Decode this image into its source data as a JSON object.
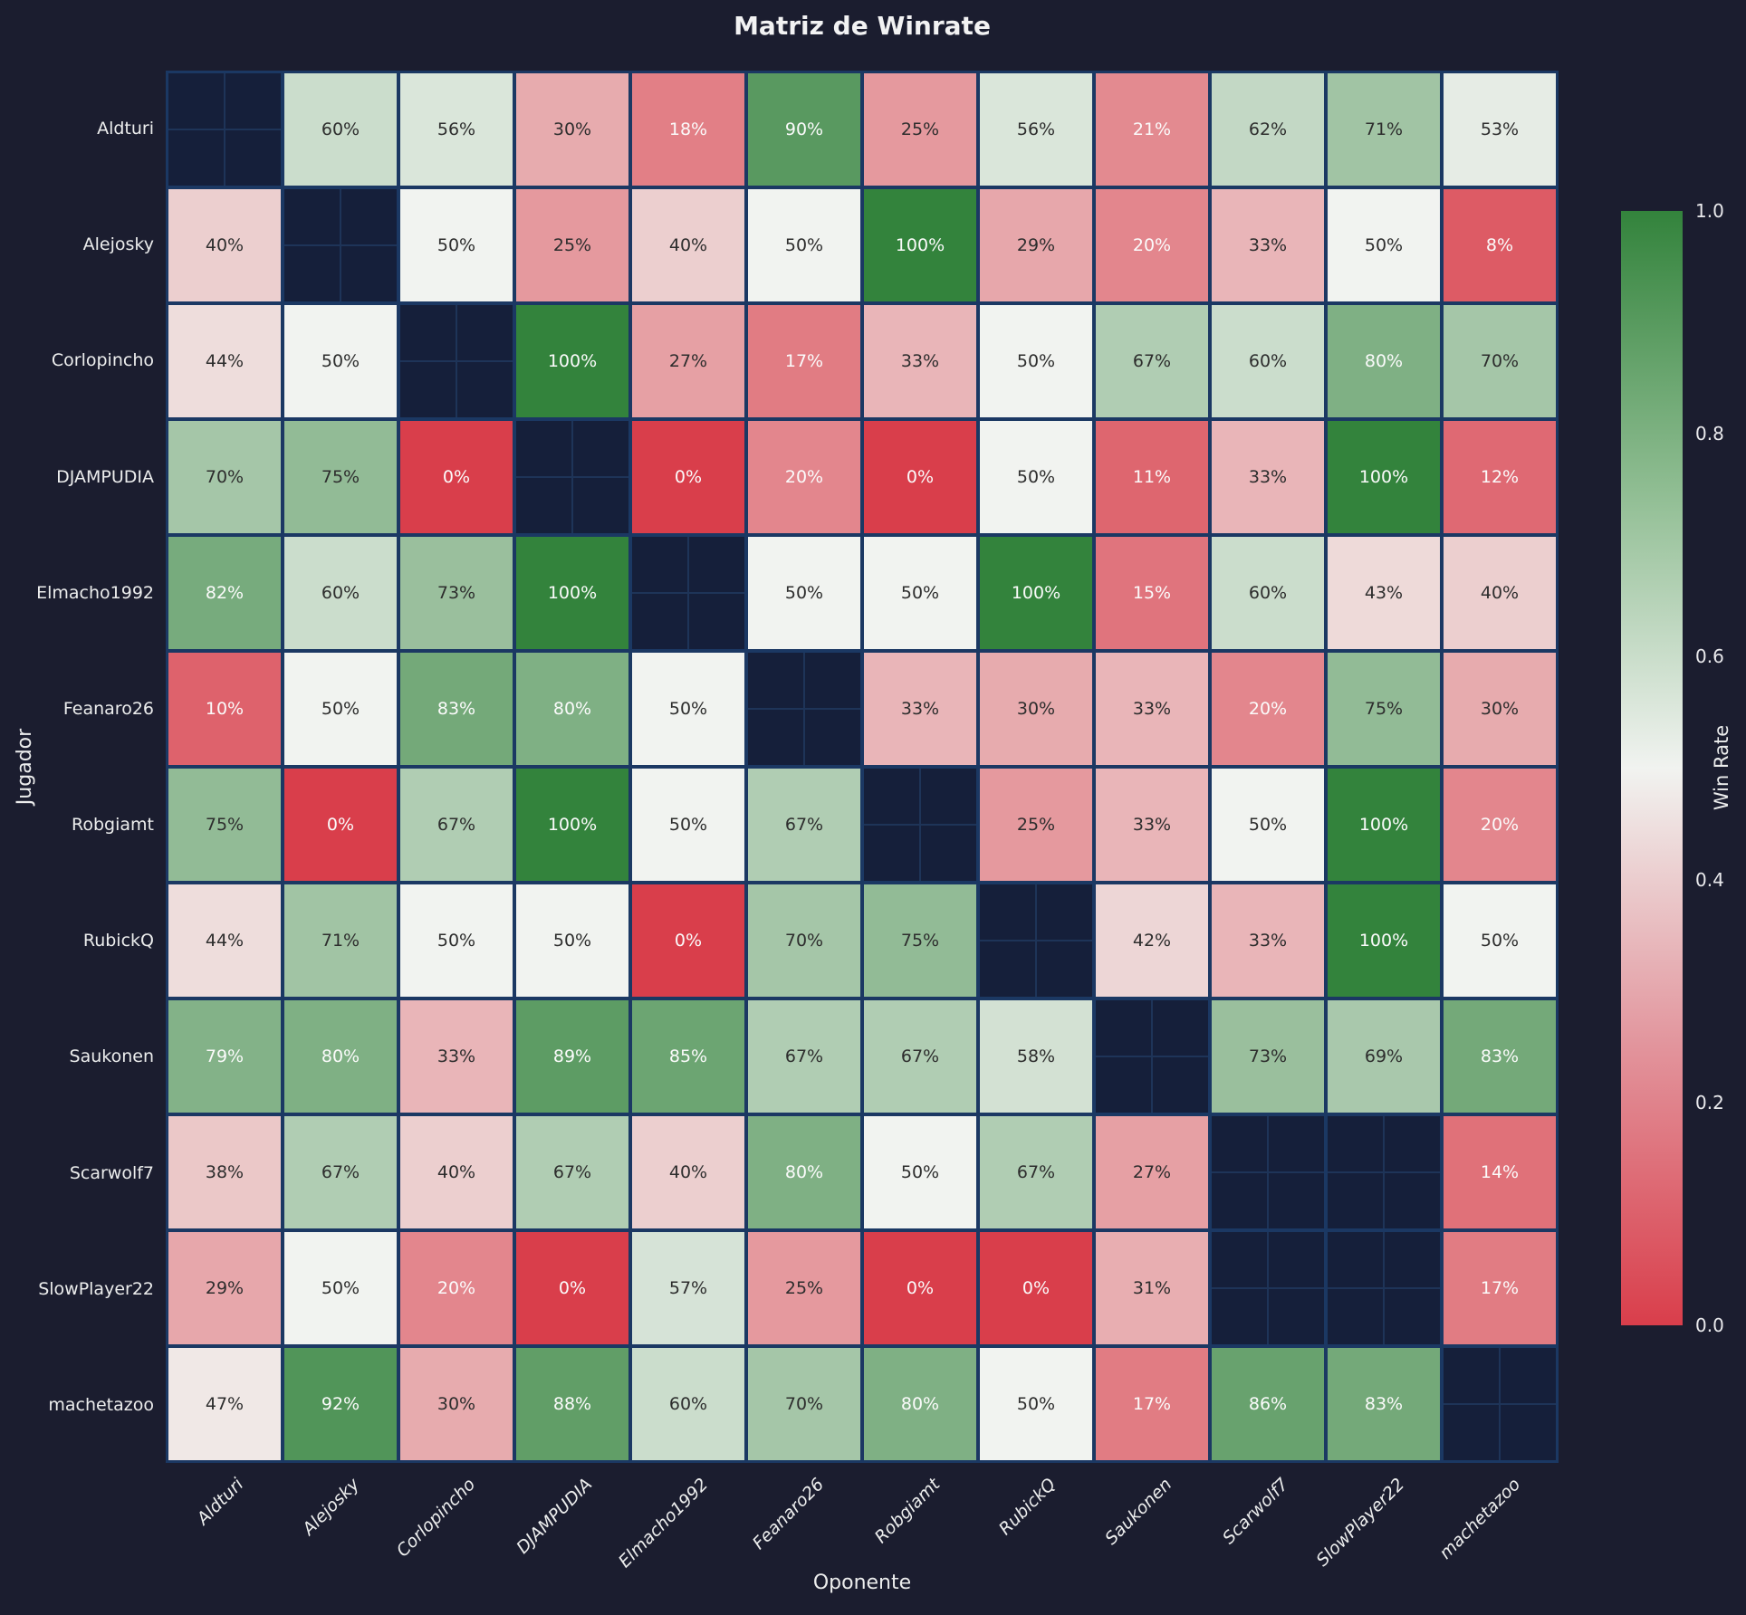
{
  "title": "Matriz de Winrate",
  "axes": {
    "x_title": "Oponente",
    "y_title": "Jugador"
  },
  "colorbar": {
    "label": "Win Rate",
    "ticks": [
      "1.0",
      "0.8",
      "0.6",
      "0.4",
      "0.2",
      "0.0"
    ],
    "min": 0.0,
    "max": 1.0
  },
  "colors": {
    "background": "#1b1d2f",
    "grid_line": "#1b3863",
    "empty_cell": "#151f3a",
    "low": "#d93e4b",
    "mid": "#f1f3f0",
    "high": "#33833c",
    "cell_text_dark": "#2d2d2d",
    "cell_text_light": "#fbfbfb"
  },
  "chart_data": {
    "type": "heatmap",
    "title": "Matriz de Winrate",
    "xlabel": "Oponente",
    "ylabel": "Jugador",
    "legend_position": "right-colorbar",
    "colorbar_label": "Win Rate",
    "value_range": [
      0,
      1
    ],
    "players": [
      "Aldturi",
      "Alejosky",
      "Corlopincho",
      "DJAMPUDIA",
      "Elmacho1992",
      "Feanaro26",
      "Robgiamt",
      "RubickQ",
      "Saukonen",
      "Scarwolf7",
      "SlowPlayer22",
      "machetazoo"
    ],
    "rows_label": "Jugador",
    "cols_label": "Oponente",
    "values_percent": [
      [
        null,
        60,
        56,
        30,
        18,
        90,
        25,
        56,
        21,
        62,
        71,
        53
      ],
      [
        40,
        null,
        50,
        25,
        40,
        50,
        100,
        29,
        20,
        33,
        50,
        8
      ],
      [
        44,
        50,
        null,
        100,
        27,
        17,
        33,
        50,
        67,
        60,
        80,
        70
      ],
      [
        70,
        75,
        0,
        null,
        0,
        20,
        0,
        50,
        11,
        33,
        100,
        12
      ],
      [
        82,
        60,
        73,
        100,
        null,
        50,
        50,
        100,
        15,
        60,
        43,
        40
      ],
      [
        10,
        50,
        83,
        80,
        50,
        null,
        33,
        30,
        33,
        20,
        75,
        30
      ],
      [
        75,
        0,
        67,
        100,
        50,
        67,
        null,
        25,
        33,
        50,
        100,
        20
      ],
      [
        44,
        71,
        50,
        50,
        0,
        70,
        75,
        null,
        42,
        33,
        100,
        50
      ],
      [
        79,
        80,
        33,
        89,
        85,
        67,
        67,
        58,
        null,
        73,
        69,
        83
      ],
      [
        38,
        67,
        40,
        67,
        40,
        80,
        50,
        67,
        27,
        null,
        null,
        14
      ],
      [
        29,
        50,
        20,
        0,
        57,
        25,
        0,
        0,
        31,
        null,
        null,
        17
      ],
      [
        47,
        92,
        30,
        88,
        60,
        70,
        80,
        50,
        17,
        86,
        83,
        null
      ]
    ]
  }
}
